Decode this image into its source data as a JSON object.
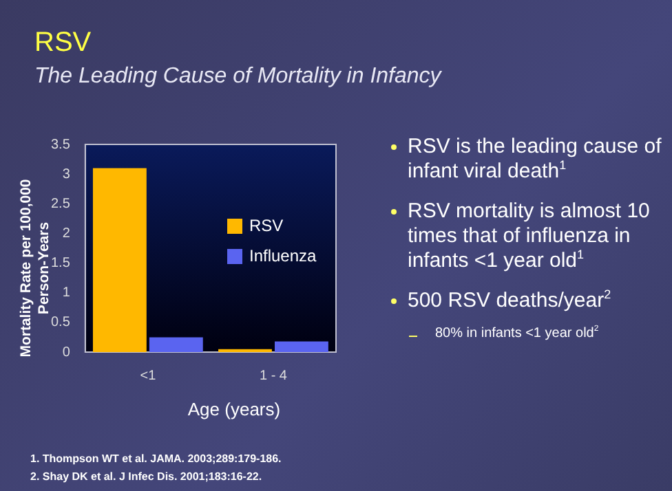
{
  "chart_data": {
    "type": "bar",
    "title": "RSV",
    "subtitle": "The Leading Cause of Mortality in Infancy",
    "xlabel": "Age (years)",
    "ylabel": "Mortality Rate per 100,000 Person-Years",
    "categories": [
      "<1",
      "1 - 4"
    ],
    "series": [
      {
        "name": "RSV",
        "color": "#ffb800",
        "values": [
          3.1,
          0.05
        ]
      },
      {
        "name": "Influenza",
        "color": "#5a64f0",
        "values": [
          0.25,
          0.18
        ]
      }
    ],
    "ylim": [
      0,
      3.5
    ],
    "yticks": [
      0,
      0.5,
      1,
      1.5,
      2,
      2.5,
      3,
      3.5
    ],
    "grid": false,
    "legend": "right",
    "annotations": [
      "RSV is the leading cause of infant viral death$^{1}$",
      "RSV mortality is almost 10 times that of influenza in infants <1 year old$^{1}$",
      "500 RSV deaths/year$^{2}$",
      "80% in infants <1 year old$^{2}$",
      "1. Thompson WT et al. JAMA. 2003;289:179-186.",
      "2. Shay DK et al. J Infec Dis. 2001;183:16-22."
    ]
  }
}
